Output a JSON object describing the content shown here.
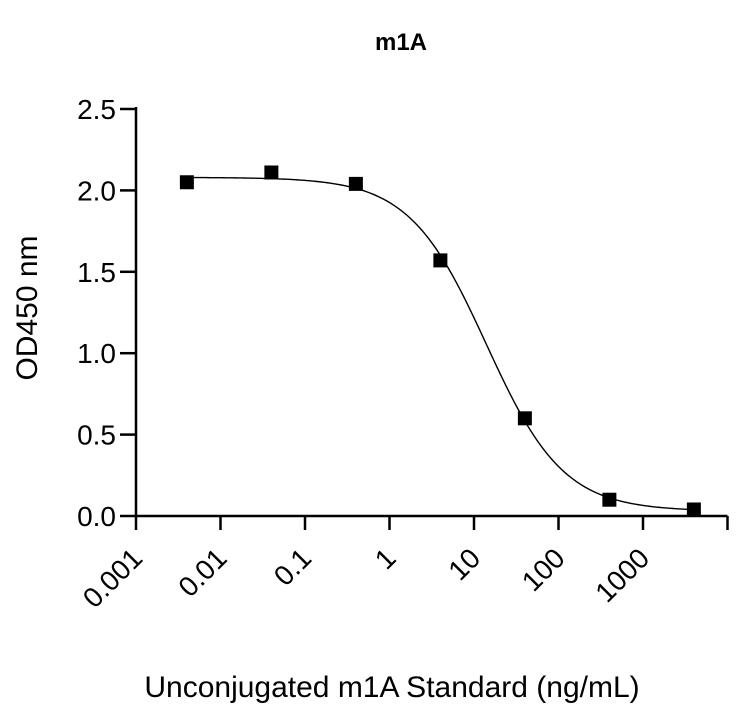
{
  "chart_data": {
    "type": "scatter",
    "title": "m1A",
    "xlabel": "Unconjugated m1A Standard (ng/mL)",
    "ylabel": "OD450 nm",
    "x_scale": "log",
    "xlim": [
      0.001,
      10000
    ],
    "ylim": [
      0,
      2.5
    ],
    "x_ticks": [
      "0.001",
      "0.01",
      "0.1",
      "1",
      "10",
      "100",
      "1000"
    ],
    "y_ticks": [
      "0.0",
      "0.5",
      "1.0",
      "1.5",
      "2.0",
      "2.5"
    ],
    "grid": false,
    "legend": "none",
    "series": [
      {
        "x": [
          0.004,
          0.04,
          0.4,
          4,
          40,
          400,
          4000
        ],
        "y": [
          2.05,
          2.11,
          2.04,
          1.57,
          0.6,
          0.1,
          0.04
        ],
        "marker": "square",
        "color": "#000000",
        "fit": {
          "model": "4PL",
          "top": 2.08,
          "bottom": 0.03,
          "ec50": 14,
          "hill": 0.95
        }
      }
    ]
  }
}
